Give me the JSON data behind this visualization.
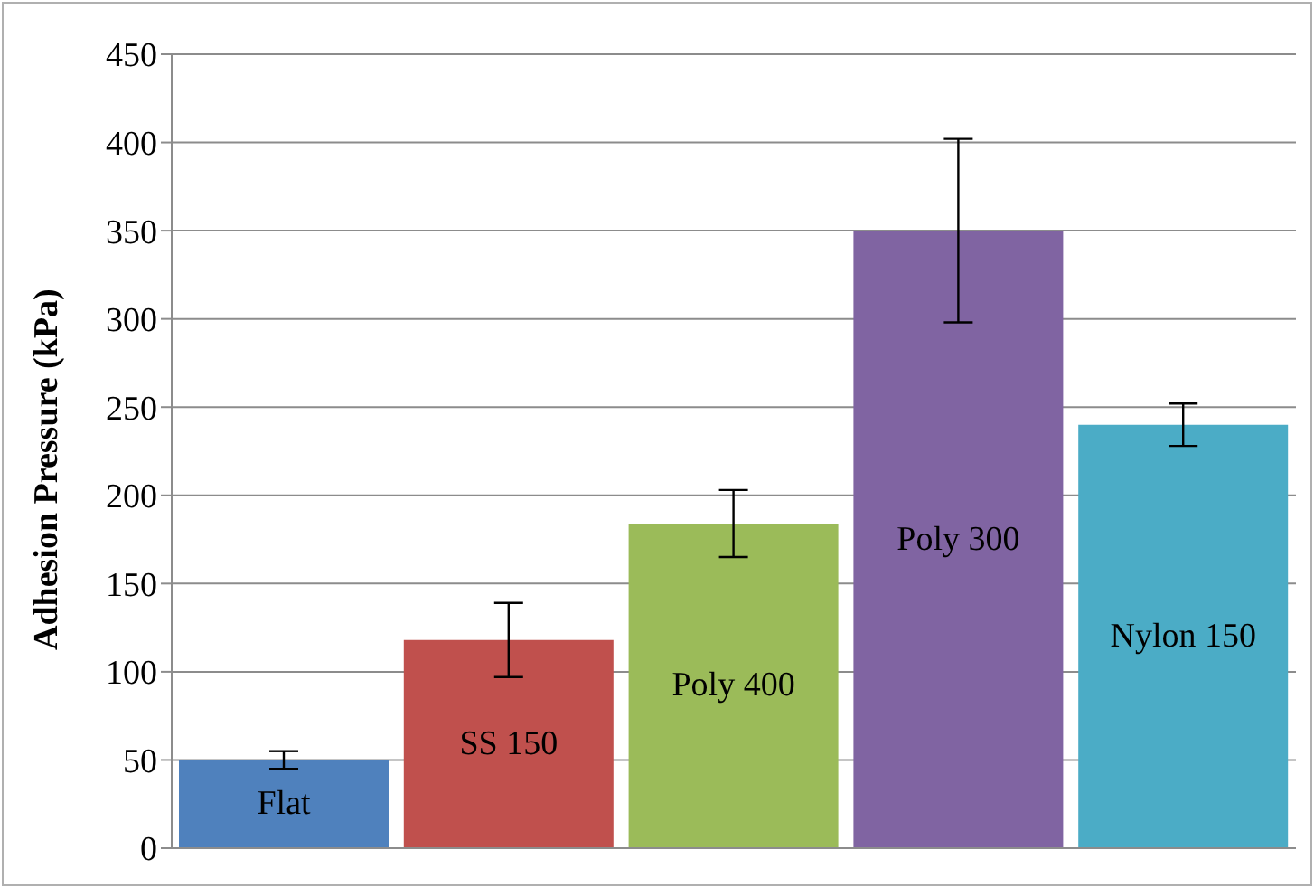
{
  "chart_data": {
    "type": "bar",
    "ylabel": "Adhesion Pressure  (kPa)",
    "categories": [
      "Flat",
      "SS 150",
      "Poly 400",
      "Poly 300",
      "Nylon 150"
    ],
    "values": [
      50,
      118,
      184,
      350,
      240
    ],
    "errors": [
      5,
      21,
      19,
      52,
      12
    ],
    "colors": [
      "#4f81bd",
      "#c0504d",
      "#9bbb59",
      "#8064a2",
      "#4bacc6"
    ],
    "ylim": [
      0,
      450
    ],
    "yticks": [
      0,
      50,
      100,
      150,
      200,
      250,
      300,
      350,
      400,
      450
    ],
    "grid": "y"
  }
}
